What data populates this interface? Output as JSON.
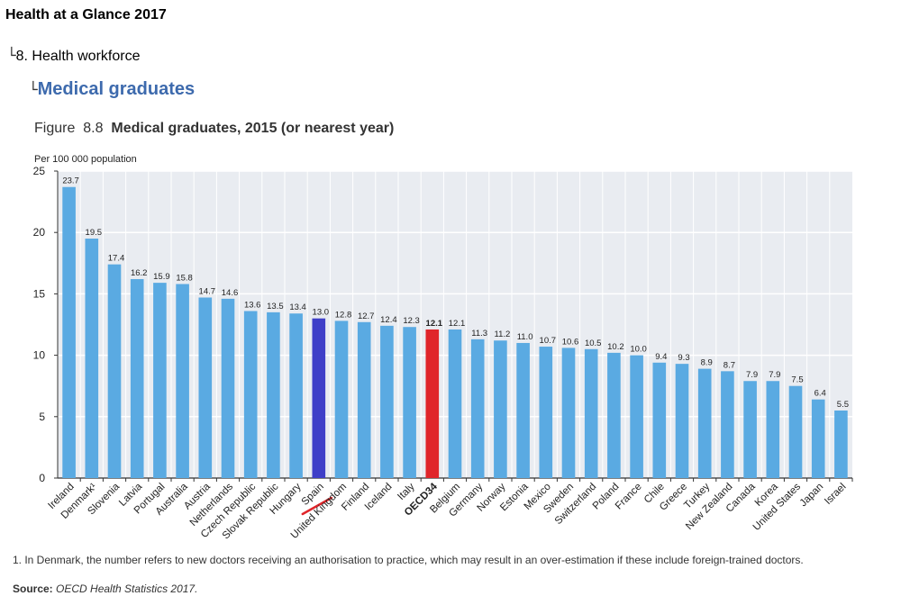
{
  "breadcrumb": {
    "top": "Health at a Glance 2017",
    "level2": "8. Health workforce",
    "level3": "Medical graduates"
  },
  "figure": {
    "label": "Figure",
    "number": "8.8",
    "title": "Medical graduates, 2015 (or nearest year)"
  },
  "colors": {
    "default_bar": "#5aaae2",
    "highlight_spain": "#3f3fc8",
    "highlight_oecd": "#e0252a",
    "title_link": "#3d6aad",
    "plot_bg": "#e9ecf1",
    "annotation_stroke": "#e0252a"
  },
  "chart_data": {
    "type": "bar",
    "ylabel": "Per 100 000 population",
    "ylim": [
      0,
      25
    ],
    "yticks": [
      0,
      5,
      10,
      15,
      20,
      25
    ],
    "grid": true,
    "categories": [
      "Ireland",
      "Denmark¹",
      "Slovenia",
      "Latvia",
      "Portugal",
      "Australia",
      "Austria",
      "Netherlands",
      "Czech Republic",
      "Slovak Republic",
      "Hungary",
      "Spain",
      "United Kingdom",
      "Finland",
      "Iceland",
      "Italy",
      "OECD34",
      "Belgium",
      "Germany",
      "Norway",
      "Estonia",
      "Mexico",
      "Sweden",
      "Switzerland",
      "Poland",
      "France",
      "Chile",
      "Greece",
      "Turkey",
      "New Zealand",
      "Canada",
      "Korea",
      "United States",
      "Japan",
      "Israel"
    ],
    "values": [
      23.7,
      19.5,
      17.4,
      16.2,
      15.9,
      15.8,
      14.7,
      14.6,
      13.6,
      13.5,
      13.4,
      13.0,
      12.8,
      12.7,
      12.4,
      12.3,
      12.1,
      12.1,
      11.3,
      11.2,
      11.0,
      10.7,
      10.6,
      10.5,
      10.2,
      10.0,
      9.4,
      9.3,
      8.9,
      8.7,
      7.9,
      7.9,
      7.5,
      6.4,
      5.5
    ],
    "value_labels": [
      "23.7",
      "19.5",
      "17.4",
      "16.2",
      "15.9",
      "15.8",
      "14.7",
      "14.6",
      "13.6",
      "13.5",
      "13.4",
      "13.0",
      "12.8",
      "12.7",
      "12.4",
      "12.3",
      "12.1",
      "12.1",
      "11.3",
      "11.2",
      "11.0",
      "10.7",
      "10.6",
      "10.5",
      "10.2",
      "10.0",
      "9.4",
      "9.3",
      "8.9",
      "8.7",
      "7.9",
      "7.9",
      "7.5",
      "6.4",
      "5.5"
    ],
    "highlights": {
      "Spain": "highlight_spain",
      "OECD34": "highlight_oecd"
    },
    "annotation": "red strikethrough mark under the Spain label"
  },
  "footnote": "1. In Denmark, the number refers to new doctors receiving an authorisation to practice, which may result in an over-estimation if these include foreign-trained doctors.",
  "source": {
    "label": "Source:",
    "text": "OECD Health Statistics 2017."
  }
}
